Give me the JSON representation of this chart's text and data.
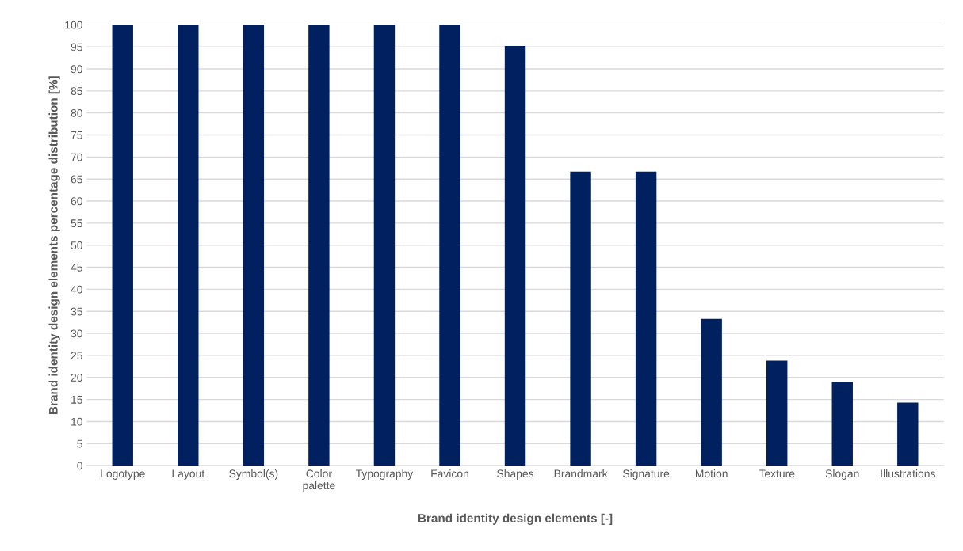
{
  "chart_data": {
    "type": "bar",
    "xlabel": "Brand identity design elements [-]",
    "ylabel": "Brand identity design elements percentage distribution [%]",
    "categories": [
      "Logotype",
      "Layout",
      "Symbol(s)",
      "Color\npalette",
      "Typography",
      "Favicon",
      "Shapes",
      "Brandmark",
      "Signature",
      "Motion",
      "Texture",
      "Slogan",
      "Illustrations"
    ],
    "values": [
      100,
      100,
      100,
      100,
      100,
      100,
      95.2,
      66.7,
      66.7,
      33.3,
      23.8,
      19,
      14.3
    ],
    "color": "#002060",
    "ylim": [
      0,
      100
    ],
    "yticks": [
      0,
      5,
      10,
      15,
      20,
      25,
      30,
      35,
      40,
      45,
      50,
      55,
      60,
      65,
      70,
      75,
      80,
      85,
      90,
      95,
      100
    ],
    "grid": "y"
  }
}
